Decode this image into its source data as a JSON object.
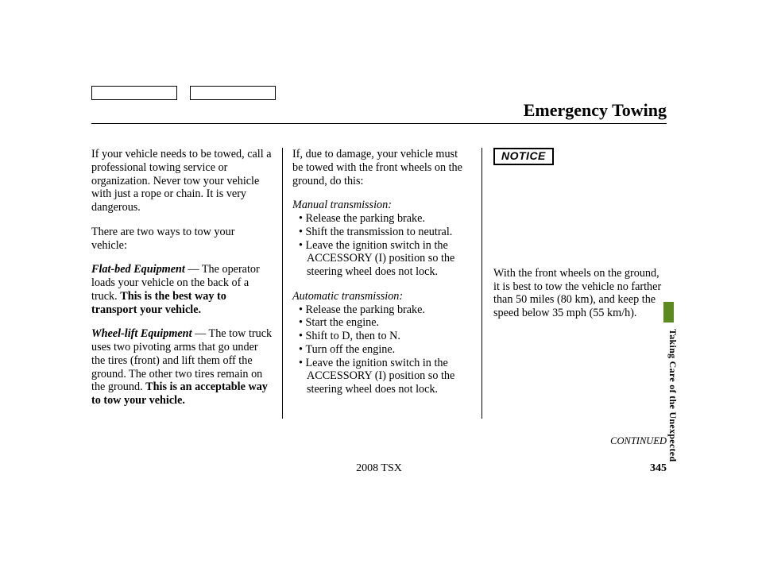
{
  "page_title": "Emergency Towing",
  "col1": {
    "p1": "If your vehicle needs to be towed, call a professional towing service or organization. Never tow your vehicle with just a rope or chain. It is very dangerous.",
    "p2": "There are two ways to tow your vehicle:",
    "flat_label": "Flat-bed Equipment",
    "flat_text_a": " — The operator loads your vehicle on the back of a truck. ",
    "flat_text_b": "This is the best way to transport your vehicle.",
    "wheel_label": "Wheel-lift Equipment",
    "wheel_text_a": " — The tow truck uses two pivoting arms that go under the tires (front) and lift them off the ground. The other two tires remain on the ground. ",
    "wheel_text_b": "This is an acceptable way to tow your vehicle."
  },
  "col2": {
    "intro": "If, due to damage, your vehicle must be towed with the front wheels on the ground, do this:",
    "manual_heading": "Manual transmission:",
    "manual_items": {
      "0": "Release the parking brake.",
      "1": "Shift the transmission to neutral.",
      "2": "Leave the ignition switch in the ACCESSORY (I) position so the steering wheel does not lock."
    },
    "auto_heading": "Automatic transmission:",
    "auto_items": {
      "0": "Release the parking brake.",
      "1": "Start the engine.",
      "2": "Shift to D, then to N.",
      "3": "Turn off the engine.",
      "4": "Leave the ignition switch in the ACCESSORY (I) position so the steering wheel does not lock."
    }
  },
  "col3": {
    "notice_label": "NOTICE",
    "body": "With the front wheels on the ground, it is best to tow the vehicle no farther than 50 miles (80 km), and keep the speed below 35 mph (55 km/h)."
  },
  "continued": "CONTINUED",
  "side_label": "Taking Care of the Unexpected",
  "footer_model": "2008  TSX",
  "footer_page": "345",
  "colors": {
    "side_tab": "#5b8a1f"
  }
}
